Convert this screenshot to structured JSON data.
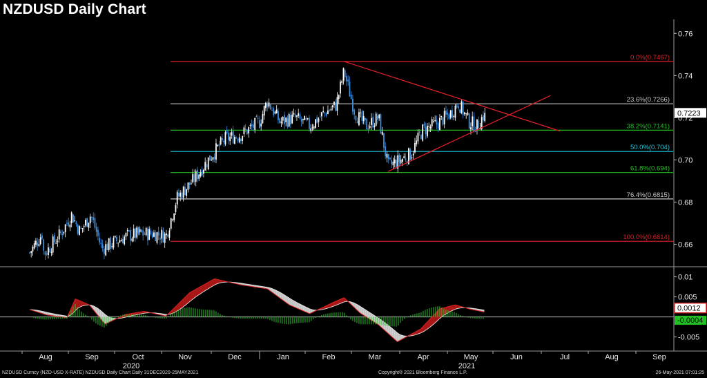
{
  "title": "NZDUSD Daily Chart",
  "footer": {
    "left": "NZDUSD Curncy (NZD-USD X-RATE) NZDUSD Daily Chart  Daily 31DEC2020-25MAY2021",
    "center": "Copyright® 2021 Bloomberg Finance L.P.",
    "right": "26-May-2021 07:01:25"
  },
  "colors": {
    "background": "#000000",
    "candle_up": "#ffffff",
    "candle_down": "#3d8fe0",
    "fib_red": "#e0202a",
    "fib_white": "#c8c8c8",
    "fib_green": "#22c022",
    "fib_cyan": "#20c8e0",
    "trendline": "#e0202a",
    "macd_fill": "#b01818",
    "signal_fill": "#d0d0d0",
    "histogram": "#2ec02e"
  },
  "chart_data": [
    {
      "type": "candlestick",
      "title": "NZDUSD Daily Chart",
      "ylim": [
        0.65,
        0.765
      ],
      "y_ticks": [
        "0.76",
        "0.74",
        "0.72",
        "0.70",
        "0.68",
        "0.66"
      ],
      "last_price": "0.7223",
      "x_month_labels": [
        "Aug",
        "Sep",
        "Oct",
        "Nov",
        "Dec",
        "Jan",
        "Feb",
        "Mar",
        "Apr",
        "May",
        "Jun",
        "Jul",
        "Aug",
        "Sep"
      ],
      "x_year_labels": [
        "2020",
        "2021"
      ],
      "fib_levels": [
        {
          "label": "0.0%(0.7467)",
          "value": 0.7467,
          "color": "red"
        },
        {
          "label": "23.6%(0.7266)",
          "value": 0.7266,
          "color": "white"
        },
        {
          "label": "38.2%(0.7141)",
          "value": 0.7141,
          "color": "green"
        },
        {
          "label": "50.0%(0.704)",
          "value": 0.704,
          "color": "cyan"
        },
        {
          "label": "61.8%(0.694)",
          "value": 0.694,
          "color": "green"
        },
        {
          "label": "76.4%(0.6815)",
          "value": 0.6815,
          "color": "white"
        },
        {
          "label": "100.0%(0.6614)",
          "value": 0.6614,
          "color": "red"
        }
      ],
      "price_path": [
        {
          "month": "Jul",
          "day": 20,
          "price": 0.656
        },
        {
          "month": "Jul",
          "day": 28,
          "price": 0.665
        },
        {
          "month": "Aug",
          "day": 5,
          "price": 0.662
        },
        {
          "month": "Aug",
          "day": 14,
          "price": 0.656
        },
        {
          "month": "Aug",
          "day": 24,
          "price": 0.665
        },
        {
          "month": "Aug",
          "day": 31,
          "price": 0.674
        },
        {
          "month": "Sep",
          "day": 8,
          "price": 0.666
        },
        {
          "month": "Sep",
          "day": 15,
          "price": 0.674
        },
        {
          "month": "Sep",
          "day": 22,
          "price": 0.658
        },
        {
          "month": "Sep",
          "day": 30,
          "price": 0.661
        },
        {
          "month": "Oct",
          "day": 9,
          "price": 0.664
        },
        {
          "month": "Oct",
          "day": 18,
          "price": 0.665
        },
        {
          "month": "Oct",
          "day": 27,
          "price": 0.665
        },
        {
          "month": "Nov",
          "day": 3,
          "price": 0.664
        },
        {
          "month": "Nov",
          "day": 10,
          "price": 0.682
        },
        {
          "month": "Nov",
          "day": 20,
          "price": 0.69
        },
        {
          "month": "Dec",
          "day": 1,
          "price": 0.702
        },
        {
          "month": "Dec",
          "day": 10,
          "price": 0.71
        },
        {
          "month": "Dec",
          "day": 20,
          "price": 0.712
        },
        {
          "month": "Jan",
          "day": 1,
          "price": 0.718
        },
        {
          "month": "Jan",
          "day": 6,
          "price": 0.728
        },
        {
          "month": "Jan",
          "day": 14,
          "price": 0.718
        },
        {
          "month": "Jan",
          "day": 24,
          "price": 0.72
        },
        {
          "month": "Feb",
          "day": 3,
          "price": 0.716
        },
        {
          "month": "Feb",
          "day": 12,
          "price": 0.722
        },
        {
          "month": "Feb",
          "day": 20,
          "price": 0.726
        },
        {
          "month": "Feb",
          "day": 25,
          "price": 0.742
        },
        {
          "month": "Mar",
          "day": 3,
          "price": 0.722
        },
        {
          "month": "Mar",
          "day": 10,
          "price": 0.716
        },
        {
          "month": "Mar",
          "day": 18,
          "price": 0.72
        },
        {
          "month": "Mar",
          "day": 24,
          "price": 0.697
        },
        {
          "month": "Apr",
          "day": 1,
          "price": 0.7
        },
        {
          "month": "Apr",
          "day": 8,
          "price": 0.703
        },
        {
          "month": "Apr",
          "day": 15,
          "price": 0.714
        },
        {
          "month": "Apr",
          "day": 24,
          "price": 0.717
        },
        {
          "month": "May",
          "day": 3,
          "price": 0.722
        },
        {
          "month": "May",
          "day": 8,
          "price": 0.727
        },
        {
          "month": "May",
          "day": 15,
          "price": 0.718
        },
        {
          "month": "May",
          "day": 20,
          "price": 0.716
        },
        {
          "month": "May",
          "day": 25,
          "price": 0.7223
        }
      ],
      "trendlines": [
        {
          "from": {
            "month": "Feb",
            "day": 25,
            "price": 0.7467
          },
          "to": {
            "month": "Jul",
            "day": 12,
            "price": 0.7137
          }
        },
        {
          "from": {
            "month": "Mar",
            "day": 24,
            "price": 0.6945
          },
          "to": {
            "month": "Jul",
            "day": 6,
            "price": 0.7305
          }
        }
      ]
    },
    {
      "type": "macd",
      "ylim": [
        -0.008,
        0.012
      ],
      "y_ticks": [
        "0.01",
        "0.005",
        "-0.005"
      ],
      "last_values": [
        "0.0012",
        "-0.0004"
      ],
      "macd_path": [
        {
          "month": "Jul",
          "day": 20,
          "value": 0.0028
        },
        {
          "month": "Aug",
          "day": 1,
          "value": 0.0022
        },
        {
          "month": "Aug",
          "day": 15,
          "value": 0.0005
        },
        {
          "month": "Aug",
          "day": 28,
          "value": -0.0002
        },
        {
          "month": "Sep",
          "day": 5,
          "value": 0.0045
        },
        {
          "month": "Sep",
          "day": 14,
          "value": 0.003
        },
        {
          "month": "Sep",
          "day": 24,
          "value": -0.0018
        },
        {
          "month": "Oct",
          "day": 8,
          "value": 0.0006
        },
        {
          "month": "Oct",
          "day": 20,
          "value": 0.0014
        },
        {
          "month": "Nov",
          "day": 3,
          "value": 0.0002
        },
        {
          "month": "Nov",
          "day": 18,
          "value": 0.006
        },
        {
          "month": "Dec",
          "day": 3,
          "value": 0.0095
        },
        {
          "month": "Dec",
          "day": 20,
          "value": 0.008
        },
        {
          "month": "Jan",
          "day": 6,
          "value": 0.007
        },
        {
          "month": "Jan",
          "day": 20,
          "value": 0.003
        },
        {
          "month": "Feb",
          "day": 3,
          "value": 0.0008
        },
        {
          "month": "Feb",
          "day": 18,
          "value": 0.0036
        },
        {
          "month": "Feb",
          "day": 25,
          "value": 0.0048
        },
        {
          "month": "Mar",
          "day": 6,
          "value": 0.001
        },
        {
          "month": "Mar",
          "day": 18,
          "value": -0.002
        },
        {
          "month": "Mar",
          "day": 30,
          "value": -0.0062
        },
        {
          "month": "Apr",
          "day": 14,
          "value": -0.003
        },
        {
          "month": "Apr",
          "day": 26,
          "value": 0.002
        },
        {
          "month": "May",
          "day": 6,
          "value": 0.003
        },
        {
          "month": "May",
          "day": 15,
          "value": 0.002
        },
        {
          "month": "May",
          "day": 25,
          "value": 0.0012
        }
      ]
    }
  ]
}
